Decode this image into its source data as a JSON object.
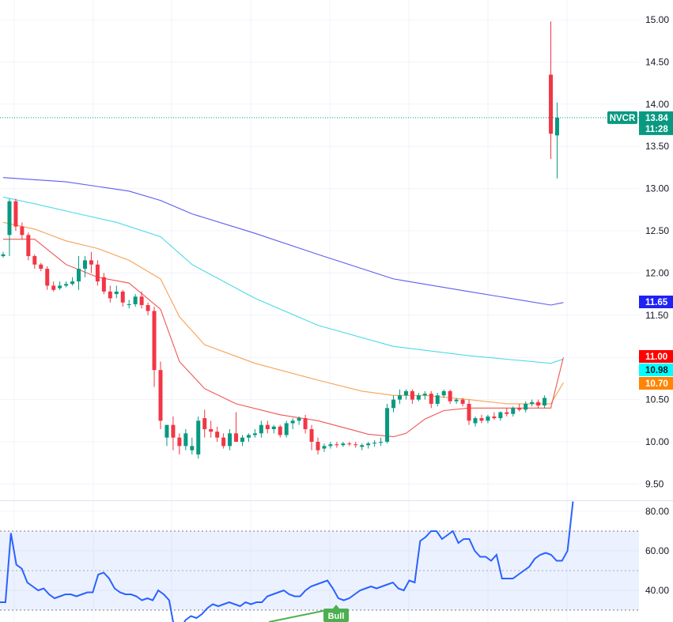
{
  "chart_data": [
    {
      "type": "candlestick",
      "symbol": "NVCR",
      "last_price": "13.84",
      "countdown": "11:28",
      "y_ticks": [
        "15.00",
        "14.50",
        "14.00",
        "13.50",
        "13.00",
        "12.50",
        "12.00",
        "11.50",
        "11.00",
        "10.50",
        "10.00",
        "9.50"
      ],
      "ylim": [
        9.3,
        15.15
      ],
      "colors": {
        "up": "#089981",
        "down": "#f23645",
        "ma200": "#5b5cf0",
        "ma100": "#4dd9e8",
        "ma50": "#f7a254",
        "ma20": "#f0544f"
      },
      "candles": [
        [
          12.2,
          12.25,
          12.18,
          12.22
        ],
        [
          12.45,
          12.88,
          12.2,
          12.85
        ],
        [
          12.85,
          12.88,
          12.5,
          12.55
        ],
        [
          12.55,
          12.6,
          12.4,
          12.45
        ],
        [
          12.45,
          12.48,
          12.15,
          12.2
        ],
        [
          12.2,
          12.22,
          12.05,
          12.1
        ],
        [
          12.1,
          12.12,
          12.02,
          12.05
        ],
        [
          12.05,
          12.08,
          11.8,
          11.85
        ],
        [
          11.85,
          11.9,
          11.78,
          11.8
        ],
        [
          11.82,
          11.9,
          11.8,
          11.85
        ],
        [
          11.85,
          11.9,
          11.83,
          11.87
        ],
        [
          11.87,
          11.95,
          11.85,
          11.9
        ],
        [
          11.9,
          12.2,
          11.8,
          12.05
        ],
        [
          12.05,
          12.2,
          11.95,
          12.15
        ],
        [
          12.15,
          12.25,
          12.0,
          12.1
        ],
        [
          12.1,
          12.15,
          11.85,
          11.9
        ],
        [
          11.95,
          12.0,
          11.75,
          11.78
        ],
        [
          11.78,
          11.85,
          11.65,
          11.7
        ],
        [
          11.75,
          11.85,
          11.7,
          11.78
        ],
        [
          11.78,
          11.8,
          11.6,
          11.65
        ],
        [
          11.62,
          11.68,
          11.58,
          11.63
        ],
        [
          11.63,
          11.75,
          11.6,
          11.72
        ],
        [
          11.72,
          11.78,
          11.58,
          11.62
        ],
        [
          11.62,
          11.65,
          11.5,
          11.55
        ],
        [
          11.55,
          11.6,
          10.65,
          10.85
        ],
        [
          10.85,
          10.95,
          10.15,
          10.25
        ],
        [
          10.05,
          10.2,
          9.95,
          10.2
        ],
        [
          10.2,
          10.3,
          9.9,
          10.05
        ],
        [
          10.05,
          10.1,
          9.85,
          9.95
        ],
        [
          9.95,
          10.15,
          9.9,
          10.1
        ],
        [
          9.9,
          10.05,
          9.85,
          9.95
        ],
        [
          9.85,
          10.3,
          9.8,
          10.25
        ],
        [
          10.28,
          10.38,
          10.05,
          10.15
        ],
        [
          10.15,
          10.25,
          10.05,
          10.12
        ],
        [
          10.12,
          10.18,
          10.0,
          10.05
        ],
        [
          10.05,
          10.1,
          9.92,
          9.95
        ],
        [
          9.95,
          10.15,
          9.9,
          10.1
        ],
        [
          10.1,
          10.35,
          10.0,
          10.0
        ],
        [
          10.0,
          10.08,
          9.95,
          10.05
        ],
        [
          10.05,
          10.1,
          10.0,
          10.08
        ],
        [
          10.08,
          10.15,
          10.05,
          10.1
        ],
        [
          10.1,
          10.25,
          10.05,
          10.2
        ],
        [
          10.2,
          10.25,
          10.1,
          10.15
        ],
        [
          10.15,
          10.2,
          10.1,
          10.18
        ],
        [
          10.18,
          10.2,
          10.05,
          10.08
        ],
        [
          10.08,
          10.25,
          10.05,
          10.22
        ],
        [
          10.22,
          10.28,
          10.15,
          10.25
        ],
        [
          10.25,
          10.3,
          10.2,
          10.28
        ],
        [
          10.28,
          10.32,
          10.1,
          10.15
        ],
        [
          10.15,
          10.2,
          9.9,
          10.0
        ],
        [
          10.0,
          10.05,
          9.85,
          9.9
        ],
        [
          9.92,
          9.98,
          9.88,
          9.95
        ],
        [
          9.95,
          10.0,
          9.92,
          9.97
        ],
        [
          9.97,
          10.0,
          9.93,
          9.96
        ],
        [
          9.96,
          10.0,
          9.94,
          9.98
        ],
        [
          9.98,
          10.0,
          9.95,
          9.97
        ],
        [
          9.97,
          10.0,
          9.93,
          9.96
        ],
        [
          9.94,
          9.98,
          9.9,
          9.96
        ],
        [
          9.96,
          10.0,
          9.92,
          9.98
        ],
        [
          9.98,
          10.02,
          9.94,
          9.99
        ],
        [
          9.99,
          10.05,
          9.95,
          10.0
        ],
        [
          10.0,
          10.45,
          9.98,
          10.4
        ],
        [
          10.4,
          10.55,
          10.35,
          10.5
        ],
        [
          10.5,
          10.62,
          10.45,
          10.55
        ],
        [
          10.55,
          10.62,
          10.5,
          10.6
        ],
        [
          10.6,
          10.62,
          10.45,
          10.5
        ],
        [
          10.5,
          10.58,
          10.48,
          10.55
        ],
        [
          10.55,
          10.6,
          10.5,
          10.57
        ],
        [
          10.57,
          10.6,
          10.4,
          10.45
        ],
        [
          10.45,
          10.58,
          10.42,
          10.55
        ],
        [
          10.55,
          10.62,
          10.52,
          10.6
        ],
        [
          10.6,
          10.62,
          10.45,
          10.48
        ],
        [
          10.48,
          10.52,
          10.45,
          10.5
        ],
        [
          10.5,
          10.52,
          10.42,
          10.45
        ],
        [
          10.45,
          10.5,
          10.2,
          10.25
        ],
        [
          10.22,
          10.3,
          10.18,
          10.28
        ],
        [
          10.28,
          10.32,
          10.22,
          10.25
        ],
        [
          10.25,
          10.32,
          10.22,
          10.3
        ],
        [
          10.3,
          10.35,
          10.26,
          10.28
        ],
        [
          10.28,
          10.36,
          10.25,
          10.35
        ],
        [
          10.35,
          10.4,
          10.3,
          10.33
        ],
        [
          10.33,
          10.42,
          10.3,
          10.4
        ],
        [
          10.4,
          10.45,
          10.36,
          10.38
        ],
        [
          10.38,
          10.48,
          10.35,
          10.45
        ],
        [
          10.45,
          10.5,
          10.42,
          10.47
        ],
        [
          10.47,
          10.5,
          10.4,
          10.43
        ],
        [
          10.43,
          10.55,
          10.4,
          10.52
        ],
        [
          14.35,
          14.98,
          13.35,
          13.65
        ],
        [
          13.63,
          14.02,
          13.12,
          13.84
        ]
      ],
      "moving_averages": [
        {
          "id": "ma200",
          "label": "11.65",
          "values": [
            [
              0,
              13.13
            ],
            [
              10,
              13.08
            ],
            [
              20,
              12.97
            ],
            [
              25,
              12.86
            ],
            [
              30,
              12.7
            ],
            [
              40,
              12.47
            ],
            [
              50,
              12.22
            ],
            [
              62,
              11.93
            ],
            [
              74,
              11.78
            ],
            [
              87,
              11.62
            ],
            [
              89,
              11.65
            ]
          ]
        },
        {
          "id": "ma100",
          "label": "10.98",
          "values": [
            [
              0,
              12.9
            ],
            [
              5,
              12.82
            ],
            [
              12,
              12.7
            ],
            [
              18,
              12.6
            ],
            [
              25,
              12.43
            ],
            [
              30,
              12.1
            ],
            [
              40,
              11.7
            ],
            [
              50,
              11.38
            ],
            [
              62,
              11.13
            ],
            [
              74,
              11.02
            ],
            [
              87,
              10.93
            ],
            [
              89,
              10.98
            ]
          ]
        },
        {
          "id": "ma50",
          "label": "10.70",
          "values": [
            [
              0,
              12.6
            ],
            [
              5,
              12.52
            ],
            [
              10,
              12.38
            ],
            [
              15,
              12.29
            ],
            [
              20,
              12.15
            ],
            [
              25,
              11.93
            ],
            [
              28,
              11.48
            ],
            [
              32,
              11.15
            ],
            [
              40,
              10.93
            ],
            [
              50,
              10.73
            ],
            [
              57,
              10.6
            ],
            [
              62,
              10.55
            ],
            [
              67,
              10.55
            ],
            [
              74,
              10.5
            ],
            [
              80,
              10.45
            ],
            [
              87,
              10.45
            ],
            [
              89,
              10.7
            ]
          ]
        },
        {
          "id": "ma20",
          "label": "11.00",
          "values": [
            [
              0,
              12.4
            ],
            [
              5,
              12.4
            ],
            [
              10,
              12.1
            ],
            [
              15,
              11.95
            ],
            [
              20,
              11.88
            ],
            [
              25,
              11.57
            ],
            [
              28,
              10.95
            ],
            [
              32,
              10.63
            ],
            [
              37,
              10.45
            ],
            [
              44,
              10.32
            ],
            [
              50,
              10.25
            ],
            [
              54,
              10.17
            ],
            [
              58,
              10.09
            ],
            [
              62,
              10.06
            ],
            [
              64,
              10.1
            ],
            [
              67,
              10.27
            ],
            [
              70,
              10.37
            ],
            [
              74,
              10.4
            ],
            [
              80,
              10.4
            ],
            [
              87,
              10.4
            ],
            [
              89,
              11.0
            ]
          ]
        }
      ]
    },
    {
      "type": "line",
      "indicator": "RSI",
      "y_ticks": [
        "80.00",
        "60.00",
        "40.00"
      ],
      "ylim": [
        25,
        85
      ],
      "band": [
        30,
        70
      ],
      "midline": 50,
      "color": "#2962ff",
      "values": [
        34,
        34,
        69,
        53,
        51,
        44,
        42,
        40,
        41,
        38,
        36,
        37,
        38,
        38,
        37,
        38,
        39,
        39,
        48,
        49,
        46,
        41,
        39,
        38,
        38,
        37,
        35,
        36,
        35,
        40,
        38,
        35,
        20,
        20,
        25,
        27,
        26,
        28,
        31,
        33,
        32,
        33,
        34,
        33,
        32,
        34,
        33,
        34,
        34,
        37,
        38,
        39,
        40,
        38,
        37,
        37,
        40,
        42,
        43,
        44,
        45,
        41,
        36,
        35,
        36,
        38,
        40,
        41,
        42,
        41,
        42,
        43,
        44,
        41,
        40,
        45,
        44,
        65,
        67,
        70,
        70,
        66,
        68,
        70,
        64,
        66,
        66,
        60,
        57,
        57,
        55,
        58,
        46,
        46,
        46,
        48,
        50,
        52,
        56,
        58,
        59,
        58,
        55,
        55,
        60,
        85
      ],
      "bull_signal": {
        "label": "Bull"
      }
    }
  ]
}
